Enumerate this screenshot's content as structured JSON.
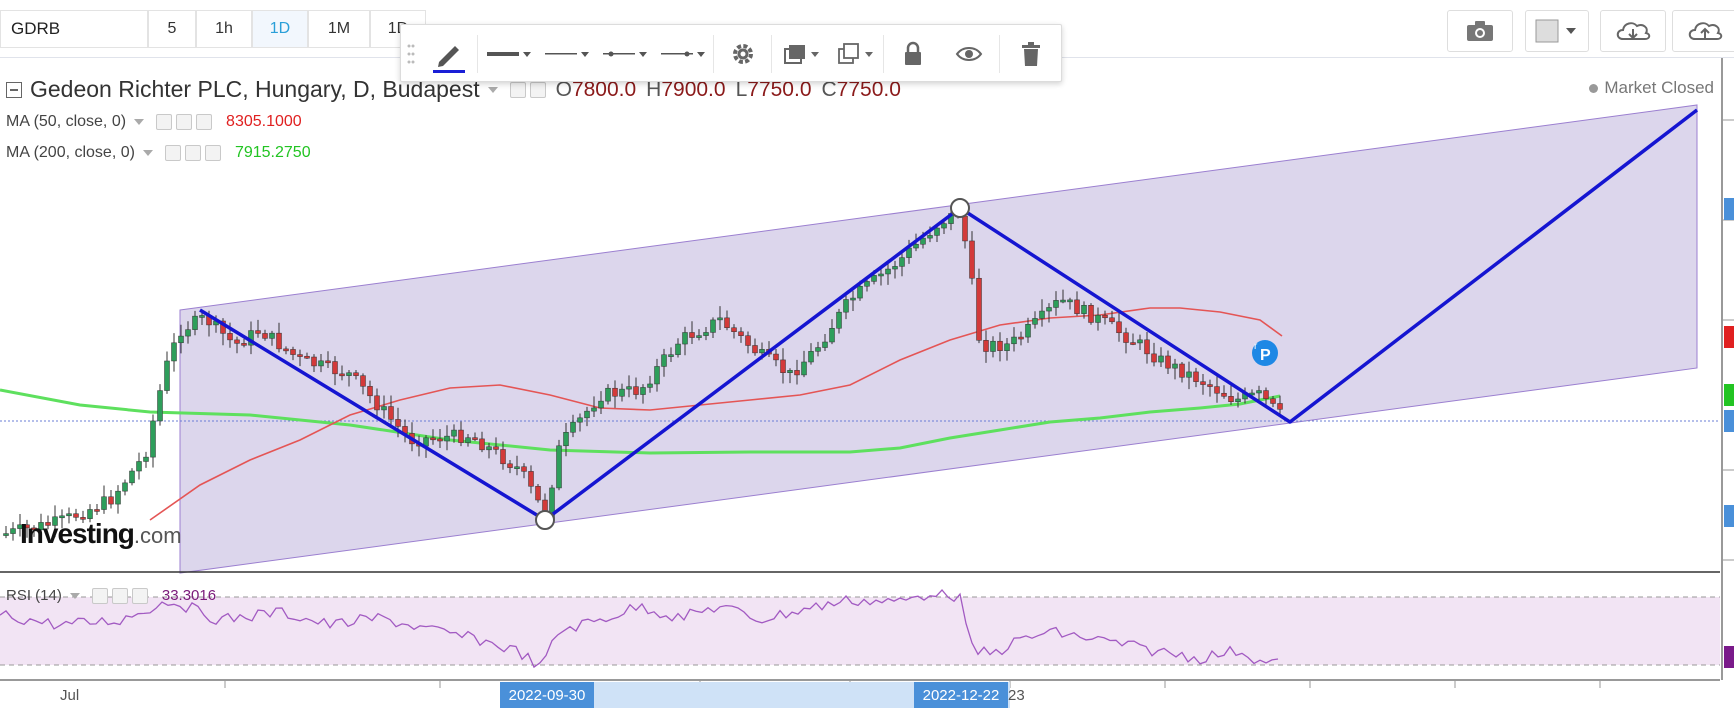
{
  "toolbar": {
    "symbol": "GDRB",
    "intervals": [
      {
        "label": "5",
        "active": false
      },
      {
        "label": "1h",
        "active": false
      },
      {
        "label": "1D",
        "active": true
      },
      {
        "label": "1M",
        "active": false
      },
      {
        "label": "1D",
        "active": false
      }
    ],
    "right_buttons": [
      "camera-icon",
      "color-box-icon",
      "cloud-download-icon",
      "cloud-upload-icon"
    ]
  },
  "drawing_toolbar": {
    "tools": [
      "pencil-icon",
      "line-width-icon",
      "line-style-solid-icon",
      "line-style-dash-icon",
      "line-end-icon",
      "gear-icon",
      "layers-icon",
      "clone-icon",
      "lock-icon",
      "eye-icon",
      "trash-icon"
    ],
    "accent_color": "#1a1fd6"
  },
  "legend": {
    "title": "Gedeon Richter PLC, Hungary, D, Budapest",
    "ohlc": [
      {
        "key": "O",
        "value": "7800.0"
      },
      {
        "key": "H",
        "value": "7900.0"
      },
      {
        "key": "L",
        "value": "7750.0"
      },
      {
        "key": "C",
        "value": "7750.0"
      }
    ],
    "ma50": {
      "label": "MA (50, close, 0)",
      "value": "8305.1000",
      "color": "#e02020"
    },
    "ma200": {
      "label": "MA (200, close, 0)",
      "value": "7915.2750",
      "color": "#22c422"
    },
    "rsi": {
      "label": "RSI (14)",
      "value": "33.3016",
      "color": "#8a2a8a"
    }
  },
  "market_status": "Market Closed",
  "watermark": {
    "brand": "Investing",
    "suffix": ".com"
  },
  "x_axis": {
    "plain_labels": [
      "Jul",
      "23"
    ],
    "highlighted_labels": [
      "2022-09-30",
      "2022-12-22"
    ]
  },
  "chart_data": {
    "type": "candlestick",
    "colors": {
      "up": "#2e9e5b",
      "down": "#d33a3a",
      "channel_fill": "#d9d3ea",
      "channel_line": "#9b7fd0",
      "pattern_line": "#1515d1",
      "rsi_line": "#a25ac2",
      "rsi_fill": "#f2e4f4"
    },
    "price_pattern": [
      "start",
      "2022-09-30 low",
      "2022-12-22 high",
      "recent low",
      "projection"
    ],
    "ma50_value": 8305.1,
    "ma200_value": 7915.275,
    "rsi_value": 33.3016,
    "last_close": 7750.0
  }
}
